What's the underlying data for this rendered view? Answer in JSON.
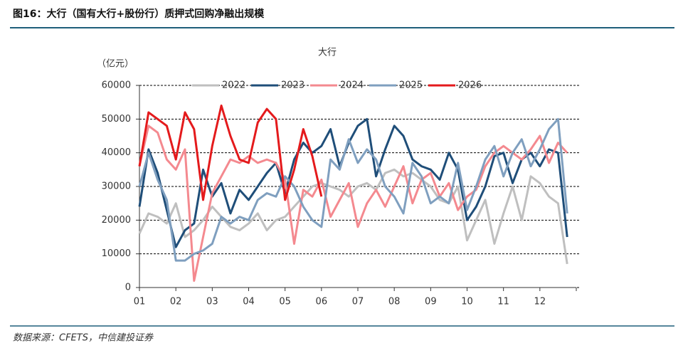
{
  "header": {
    "title": "图16：大行（国有大行+股份行）质押式回购净融出规模"
  },
  "footer": {
    "source": "数据来源：CFETS，中信建投证券"
  },
  "chart_data": {
    "type": "line",
    "title": "大行",
    "y_label": "（亿元）",
    "x": [
      1,
      1.25,
      1.5,
      1.75,
      2,
      2.25,
      2.5,
      2.75,
      3,
      3.25,
      3.5,
      3.75,
      4,
      4.25,
      4.5,
      4.75,
      5,
      5.25,
      5.5,
      5.75,
      6,
      6.25,
      6.5,
      6.75,
      7,
      7.25,
      7.5,
      7.75,
      8,
      8.25,
      8.5,
      8.75,
      9,
      9.25,
      9.5,
      9.75,
      10,
      10.25,
      10.5,
      10.75,
      11,
      11.25,
      11.5,
      11.75,
      12,
      12.25,
      12.5,
      12.75
    ],
    "xlim": [
      1,
      13
    ],
    "xticks": [
      {
        "value": 1,
        "label": "01"
      },
      {
        "value": 2,
        "label": "02"
      },
      {
        "value": 3,
        "label": "03"
      },
      {
        "value": 4,
        "label": "04"
      },
      {
        "value": 5,
        "label": "05"
      },
      {
        "value": 6,
        "label": "06"
      },
      {
        "value": 7,
        "label": "07"
      },
      {
        "value": 8,
        "label": "08"
      },
      {
        "value": 9,
        "label": "09"
      },
      {
        "value": 10,
        "label": "10"
      },
      {
        "value": 11,
        "label": "11"
      },
      {
        "value": 12,
        "label": "12"
      }
    ],
    "ylim": [
      0,
      60000
    ],
    "yticks": [
      0,
      10000,
      20000,
      30000,
      40000,
      50000,
      60000
    ],
    "grid": true,
    "legend": "top",
    "series": [
      {
        "name": "2022",
        "color": "#bfbfbf",
        "values": [
          16000,
          22000,
          21000,
          19000,
          25000,
          15000,
          17000,
          20000,
          24000,
          21000,
          18000,
          17000,
          19000,
          22000,
          17000,
          20000,
          21000,
          24000,
          27000,
          30000,
          31000,
          30000,
          29000,
          27000,
          30000,
          31000,
          29000,
          34000,
          35000,
          33000,
          34000,
          32000,
          30000,
          26000,
          25000,
          30000,
          14000,
          20000,
          26000,
          13000,
          22000,
          30000,
          20000,
          33000,
          31000,
          27000,
          25000,
          7000
        ]
      },
      {
        "name": "2023",
        "color": "#1f4e79",
        "values": [
          24000,
          41000,
          34000,
          23000,
          12000,
          17000,
          19000,
          35000,
          27000,
          31000,
          22000,
          29000,
          26000,
          30000,
          34000,
          37000,
          28000,
          38000,
          43000,
          40000,
          42000,
          47000,
          36000,
          43000,
          48000,
          50000,
          33000,
          41000,
          48000,
          45000,
          38000,
          36000,
          35000,
          32000,
          40000,
          35000,
          20000,
          24000,
          30000,
          39000,
          40000,
          31000,
          38000,
          40000,
          36000,
          41000,
          40000,
          15000
        ]
      },
      {
        "name": "2024",
        "color": "#f4898f",
        "values": [
          36000,
          48000,
          46000,
          38000,
          35000,
          41000,
          2000,
          15000,
          28000,
          33000,
          38000,
          37000,
          39000,
          37000,
          38000,
          37000,
          32000,
          13000,
          29000,
          27000,
          32000,
          21000,
          26000,
          31000,
          18000,
          25000,
          29000,
          24000,
          30000,
          36000,
          25000,
          32000,
          34000,
          27000,
          31000,
          23000,
          27000,
          29000,
          36000,
          40000,
          42000,
          40000,
          38000,
          41000,
          45000,
          37000,
          43000,
          40000
        ]
      },
      {
        "name": "2025",
        "color": "#7f9fbf",
        "values": [
          30000,
          40000,
          32000,
          26000,
          8000,
          8000,
          10000,
          11000,
          13000,
          21000,
          19000,
          21000,
          20000,
          26000,
          28000,
          27000,
          33000,
          30000,
          24000,
          20000,
          18000,
          38000,
          35000,
          44000,
          37000,
          41000,
          38000,
          30000,
          27000,
          22000,
          37000,
          33000,
          25000,
          27000,
          25000,
          37000,
          23000,
          30000,
          38000,
          42000,
          33000,
          40000,
          44000,
          36000,
          41000,
          47000,
          50000,
          22000
        ]
      },
      {
        "name": "2026",
        "color": "#e41a1c",
        "values": [
          36000,
          52000,
          50000,
          48000,
          38000,
          52000,
          47000,
          26000,
          42000,
          54000,
          45000,
          38000,
          37000,
          49000,
          53000,
          50000,
          26000,
          35000,
          47000,
          39000,
          27000,
          null,
          null,
          null,
          null,
          null,
          null,
          null,
          null,
          null,
          null,
          null,
          null,
          null,
          null,
          null,
          null,
          null,
          null,
          null,
          null,
          null,
          null,
          null,
          null,
          null,
          null,
          null
        ]
      }
    ]
  }
}
